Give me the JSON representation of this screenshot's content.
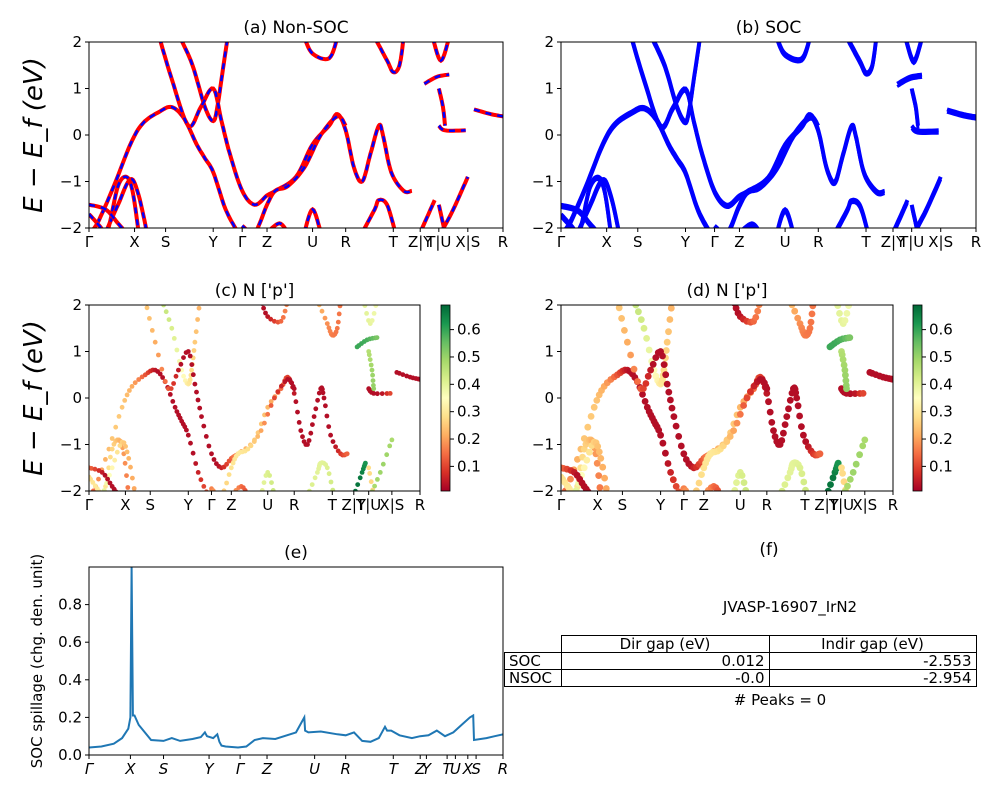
{
  "ticks_band": [
    "Γ",
    "X",
    "S",
    "Y",
    "Γ",
    "Z",
    "U",
    "R",
    "T",
    "Z|Y",
    "T|U",
    "X|S",
    "R"
  ],
  "ticks_band_positions": [
    0,
    0.11,
    0.185,
    0.3,
    0.37,
    0.43,
    0.54,
    0.62,
    0.735,
    0.8,
    0.845,
    0.915,
    1.0
  ],
  "ticks_spillage": [
    "Γ",
    "X",
    "S",
    "Y",
    "Γ",
    "Z",
    "U",
    "R",
    "T",
    "Z",
    "Y",
    "T",
    "U",
    "X",
    "S",
    "R"
  ],
  "chart_data": [
    {
      "type": "line",
      "title": "(a) Non-SOC",
      "ylabel": "E − E_f (eV)",
      "ylim": [
        -2,
        2
      ],
      "yticks": [
        -2,
        -1,
        0,
        1,
        2
      ],
      "series": [
        {
          "color": "#ff0000",
          "style": "solid"
        },
        {
          "color": "#0000ff",
          "style": "dashed"
        }
      ]
    },
    {
      "type": "line",
      "title": "(b) SOC",
      "ylim": [
        -2,
        2
      ],
      "yticks": [
        -2,
        -1,
        0,
        1,
        2
      ],
      "series": [
        {
          "color": "#0000ff"
        }
      ]
    },
    {
      "type": "scatter",
      "title": "(c)  N ['p']",
      "ylabel": "E − E_f (eV)",
      "ylim": [
        -2,
        2
      ],
      "yticks": [
        -2,
        -1,
        0,
        1,
        2
      ],
      "colorbar_ticks": [
        "0.1",
        "0.2",
        "0.3",
        "0.4",
        "0.5",
        "0.6"
      ],
      "colormap": "RdYlGn"
    },
    {
      "type": "scatter",
      "title": "(d) N ['p']",
      "ylim": [
        -2,
        2
      ],
      "yticks": [
        -2,
        -1,
        0,
        1,
        2
      ],
      "colorbar_ticks": [
        "0.1",
        "0.2",
        "0.3",
        "0.4",
        "0.5",
        "0.6"
      ],
      "colormap": "RdYlGn"
    },
    {
      "type": "line",
      "title": "(e)",
      "ylabel": "SOC spillage (chg. den. unit)",
      "ylim": [
        0,
        1.0
      ],
      "yticks": [
        "0.0",
        "0.2",
        "0.4",
        "0.6",
        "0.8"
      ],
      "color": "#1f77b4",
      "x": [
        0,
        0.03,
        0.06,
        0.08,
        0.095,
        0.1,
        0.103,
        0.106,
        0.11,
        0.12,
        0.15,
        0.18,
        0.2,
        0.22,
        0.25,
        0.27,
        0.28,
        0.285,
        0.3,
        0.31,
        0.315,
        0.32,
        0.33,
        0.36,
        0.38,
        0.4,
        0.42,
        0.45,
        0.5,
        0.52,
        0.522,
        0.53,
        0.56,
        0.6,
        0.62,
        0.64,
        0.66,
        0.68,
        0.7,
        0.715,
        0.72,
        0.73,
        0.75,
        0.78,
        0.8,
        0.82,
        0.84,
        0.86,
        0.88,
        0.9,
        0.92,
        0.928,
        0.93,
        0.96,
        0.98,
        1.0
      ],
      "values": [
        0.04,
        0.045,
        0.06,
        0.09,
        0.14,
        0.2,
        1.0,
        0.21,
        0.21,
        0.16,
        0.08,
        0.075,
        0.09,
        0.075,
        0.085,
        0.095,
        0.12,
        0.1,
        0.09,
        0.11,
        0.07,
        0.05,
        0.045,
        0.04,
        0.045,
        0.08,
        0.09,
        0.085,
        0.12,
        0.2,
        0.13,
        0.12,
        0.125,
        0.11,
        0.105,
        0.12,
        0.075,
        0.07,
        0.09,
        0.15,
        0.13,
        0.13,
        0.105,
        0.09,
        0.1,
        0.105,
        0.13,
        0.1,
        0.12,
        0.16,
        0.2,
        0.21,
        0.08,
        0.09,
        0.1,
        0.11
      ]
    }
  ],
  "panel_f": {
    "title": "(f)",
    "system": "JVASP-16907_IrN2",
    "headers": [
      "Dir gap (eV)",
      "Indir gap (eV)"
    ],
    "rows": [
      {
        "label": "SOC",
        "dir": "0.012",
        "indir": "-2.553"
      },
      {
        "label": "NSOC",
        "dir": "-0.0",
        "indir": "-2.954"
      }
    ],
    "peaks": "# Peaks = 0"
  }
}
